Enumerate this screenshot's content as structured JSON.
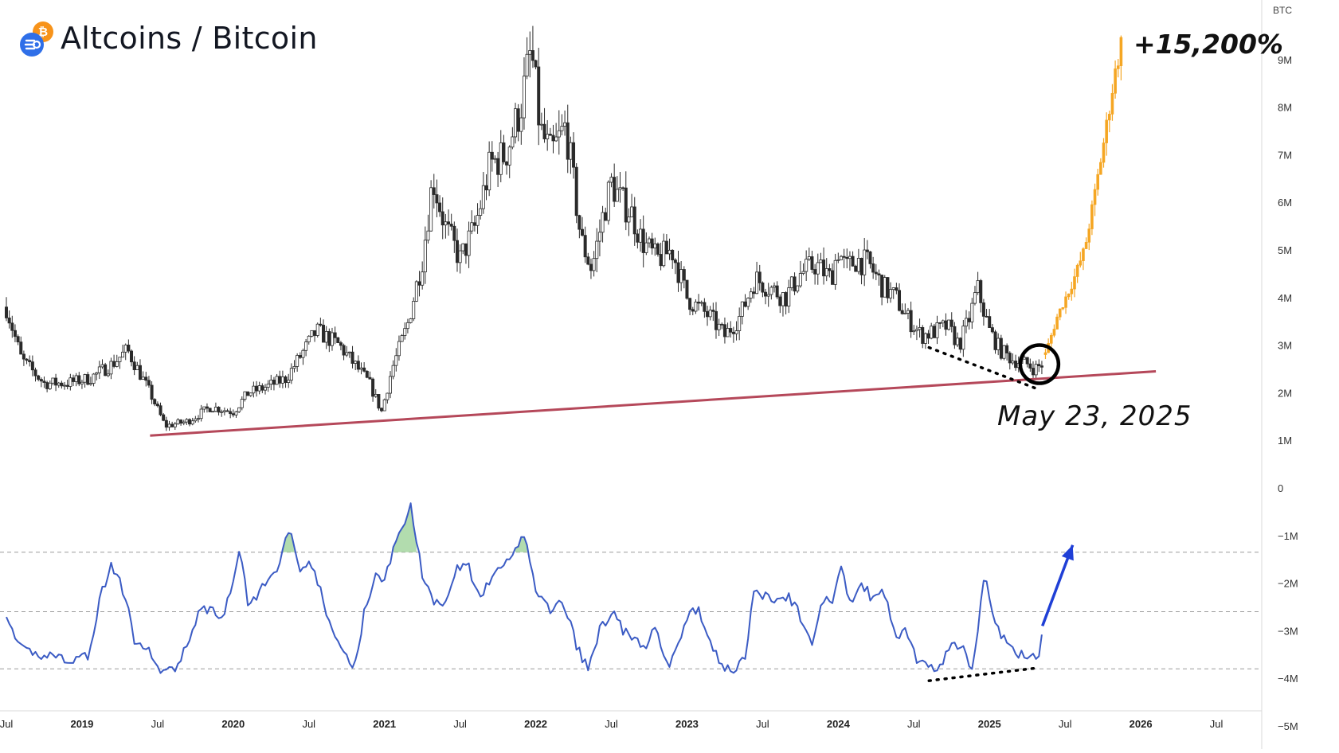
{
  "header": {
    "title": "Altcoins / Bitcoin",
    "gain_label": "+15,200%",
    "date_label": "May 23, 2025",
    "logo_icon": "bitcoin-coin-icon"
  },
  "colors": {
    "candles": "#2a2a2a",
    "projection": "#f5a623",
    "support_line": "#b5485a",
    "oscillator": "#3b5bc4",
    "arrow": "#1f3fd6",
    "overbought_fill": "#9fd39a",
    "logo_blue": "#2f6fe8",
    "logo_orange": "#f7931a"
  },
  "chart_data": {
    "type": "line",
    "title": "Altcoins / Bitcoin",
    "y_unit": "BTC",
    "y_ticks": [
      "9M",
      "8M",
      "7M",
      "6M",
      "5M",
      "4M",
      "3M",
      "2M",
      "1M",
      "0",
      "−1M",
      "−2M",
      "−3M",
      "−4M",
      "−5M"
    ],
    "ylim": [
      -5,
      10
    ],
    "x_ticks": [
      {
        "t": 2018.5,
        "label": "Jul",
        "bold": false
      },
      {
        "t": 2019.0,
        "label": "2019",
        "bold": true
      },
      {
        "t": 2019.5,
        "label": "Jul",
        "bold": false
      },
      {
        "t": 2020.0,
        "label": "2020",
        "bold": true
      },
      {
        "t": 2020.5,
        "label": "Jul",
        "bold": false
      },
      {
        "t": 2021.0,
        "label": "2021",
        "bold": true
      },
      {
        "t": 2021.5,
        "label": "Jul",
        "bold": false
      },
      {
        "t": 2022.0,
        "label": "2022",
        "bold": true
      },
      {
        "t": 2022.5,
        "label": "Jul",
        "bold": false
      },
      {
        "t": 2023.0,
        "label": "2023",
        "bold": true
      },
      {
        "t": 2023.5,
        "label": "Jul",
        "bold": false
      },
      {
        "t": 2024.0,
        "label": "2024",
        "bold": true
      },
      {
        "t": 2024.5,
        "label": "Jul",
        "bold": false
      },
      {
        "t": 2025.0,
        "label": "2025",
        "bold": true
      },
      {
        "t": 2025.5,
        "label": "Jul",
        "bold": false
      },
      {
        "t": 2026.0,
        "label": "2026",
        "bold": true
      },
      {
        "t": 2026.5,
        "label": "Jul",
        "bold": false
      }
    ],
    "xlim": [
      2018.5,
      2026.8
    ],
    "series": [
      {
        "kind": "price",
        "x": [
          2018.5,
          2018.6,
          2018.75,
          2018.9,
          2019.05,
          2019.2,
          2019.3,
          2019.45,
          2019.55,
          2019.7,
          2019.85,
          2020.0,
          2020.1,
          2020.2,
          2020.35,
          2020.45,
          2020.55,
          2020.7,
          2020.8,
          2020.9,
          2020.98,
          2021.05,
          2021.15,
          2021.25,
          2021.32,
          2021.4,
          2021.5,
          2021.6,
          2021.7,
          2021.8,
          2021.9,
          2021.97,
          2022.03,
          2022.1,
          2022.2,
          2022.3,
          2022.37,
          2022.45,
          2022.5,
          2022.57,
          2022.63,
          2022.7,
          2022.8,
          2022.9,
          2023.0,
          2023.07,
          2023.15,
          2023.25,
          2023.35,
          2023.45,
          2023.55,
          2023.65,
          2023.75,
          2023.85,
          2023.95,
          2024.0,
          2024.05,
          2024.12,
          2024.2,
          2024.3,
          2024.38,
          2024.45,
          2024.55,
          2024.65,
          2024.72,
          2024.8,
          2024.87,
          2024.92,
          2025.0,
          2025.07,
          2025.15,
          2025.25,
          2025.3,
          2025.35
        ],
        "y": [
          3.8,
          2.7,
          2.2,
          2.2,
          2.3,
          2.6,
          2.9,
          2.0,
          1.3,
          1.4,
          1.7,
          1.6,
          2.0,
          2.1,
          2.3,
          2.8,
          3.3,
          3.0,
          2.6,
          2.2,
          1.6,
          2.5,
          3.4,
          4.8,
          6.5,
          5.5,
          4.8,
          5.5,
          6.8,
          7.0,
          8.0,
          9.2,
          7.5,
          7.0,
          7.6,
          5.2,
          4.6,
          5.8,
          6.4,
          6.0,
          5.8,
          5.2,
          4.8,
          5.0,
          4.0,
          3.8,
          3.6,
          3.2,
          3.6,
          4.4,
          4.2,
          4.0,
          4.5,
          4.7,
          4.4,
          5.0,
          4.6,
          4.8,
          4.7,
          4.2,
          4.0,
          3.6,
          3.2,
          3.3,
          3.4,
          3.0,
          3.6,
          4.2,
          3.3,
          2.9,
          2.7,
          2.6,
          2.5,
          2.6
        ]
      },
      {
        "kind": "projection",
        "x": [
          2025.37,
          2025.45,
          2025.55,
          2025.63,
          2025.7,
          2025.77,
          2025.82,
          2025.87
        ],
        "y": [
          2.8,
          3.6,
          4.3,
          5.0,
          6.2,
          7.5,
          8.5,
          9.3
        ]
      },
      {
        "kind": "oscillator",
        "x": [
          2018.5,
          2018.55,
          2018.6,
          2018.7,
          2018.8,
          2018.9,
          2018.95,
          2019.05,
          2019.12,
          2019.2,
          2019.3,
          2019.35,
          2019.42,
          2019.5,
          2019.55,
          2019.62,
          2019.7,
          2019.78,
          2019.85,
          2019.92,
          2020.0,
          2020.05,
          2020.1,
          2020.15,
          2020.22,
          2020.3,
          2020.38,
          2020.45,
          2020.5,
          2020.58,
          2020.65,
          2020.72,
          2020.8,
          2020.88,
          2020.95,
          2021.0,
          2021.05,
          2021.1,
          2021.17,
          2021.25,
          2021.32,
          2021.35,
          2021.4,
          2021.47,
          2021.55,
          2021.62,
          2021.7,
          2021.78,
          2021.85,
          2021.92,
          2022.0,
          2022.05,
          2022.1,
          2022.15,
          2022.22,
          2022.28,
          2022.35,
          2022.42,
          2022.5,
          2022.58,
          2022.65,
          2022.72,
          2022.8,
          2022.87,
          2022.95,
          2023.02,
          2023.08,
          2023.15,
          2023.22,
          2023.3,
          2023.38,
          2023.45,
          2023.52,
          2023.6,
          2023.68,
          2023.75,
          2023.82,
          2023.9,
          2023.97,
          2024.02,
          2024.08,
          2024.15,
          2024.22,
          2024.3,
          2024.38,
          2024.45,
          2024.52,
          2024.6,
          2024.67,
          2024.75,
          2024.82,
          2024.88,
          2024.92,
          2024.97,
          2025.03,
          2025.1,
          2025.17,
          2025.25,
          2025.32,
          2025.35
        ],
        "y": [
          -2.6,
          -3.2,
          -3.4,
          -3.5,
          -3.5,
          -3.6,
          -3.6,
          -3.5,
          -2.3,
          -1.6,
          -2.4,
          -3.4,
          -3.3,
          -3.8,
          -3.9,
          -3.8,
          -3.2,
          -2.6,
          -2.5,
          -2.8,
          -1.9,
          -1.3,
          -2.5,
          -2.3,
          -2.0,
          -1.6,
          -0.8,
          -1.8,
          -1.5,
          -2.2,
          -3.0,
          -3.4,
          -3.8,
          -2.4,
          -1.8,
          -1.9,
          -1.4,
          -1.0,
          -0.3,
          -1.8,
          -2.4,
          -2.3,
          -2.4,
          -1.7,
          -1.6,
          -2.3,
          -2.0,
          -1.6,
          -1.5,
          -0.9,
          -2.1,
          -2.4,
          -2.6,
          -2.3,
          -2.8,
          -3.4,
          -3.8,
          -3.0,
          -2.6,
          -3.0,
          -3.2,
          -3.4,
          -2.9,
          -3.8,
          -3.2,
          -2.6,
          -2.6,
          -3.1,
          -3.8,
          -3.8,
          -3.6,
          -2.1,
          -2.3,
          -2.4,
          -2.3,
          -2.7,
          -3.3,
          -2.4,
          -2.3,
          -1.6,
          -2.5,
          -2.0,
          -2.3,
          -2.2,
          -3.1,
          -3.0,
          -3.6,
          -3.8,
          -3.8,
          -3.3,
          -3.3,
          -3.8,
          -3.1,
          -1.7,
          -2.8,
          -3.2,
          -3.5,
          -3.5,
          -3.6,
          -3.0
        ]
      }
    ],
    "oscillator_levels": [
      -1.35,
      -2.6,
      -3.8
    ],
    "support_line": {
      "x": [
        2019.45,
        2026.1
      ],
      "y": [
        1.1,
        2.45
      ]
    },
    "price_divergence_line": {
      "x": [
        2024.6,
        2025.3
      ],
      "y": [
        2.95,
        2.1
      ]
    },
    "oscillator_divergence_line": {
      "x": [
        2024.6,
        2025.32
      ],
      "y": [
        -4.05,
        -3.78
      ]
    },
    "projection_arrow": {
      "x": [
        2025.35,
        2025.55
      ],
      "y": [
        -2.9,
        -1.2
      ]
    },
    "highlight_circle": {
      "x": 2025.33,
      "y": 2.6
    }
  }
}
